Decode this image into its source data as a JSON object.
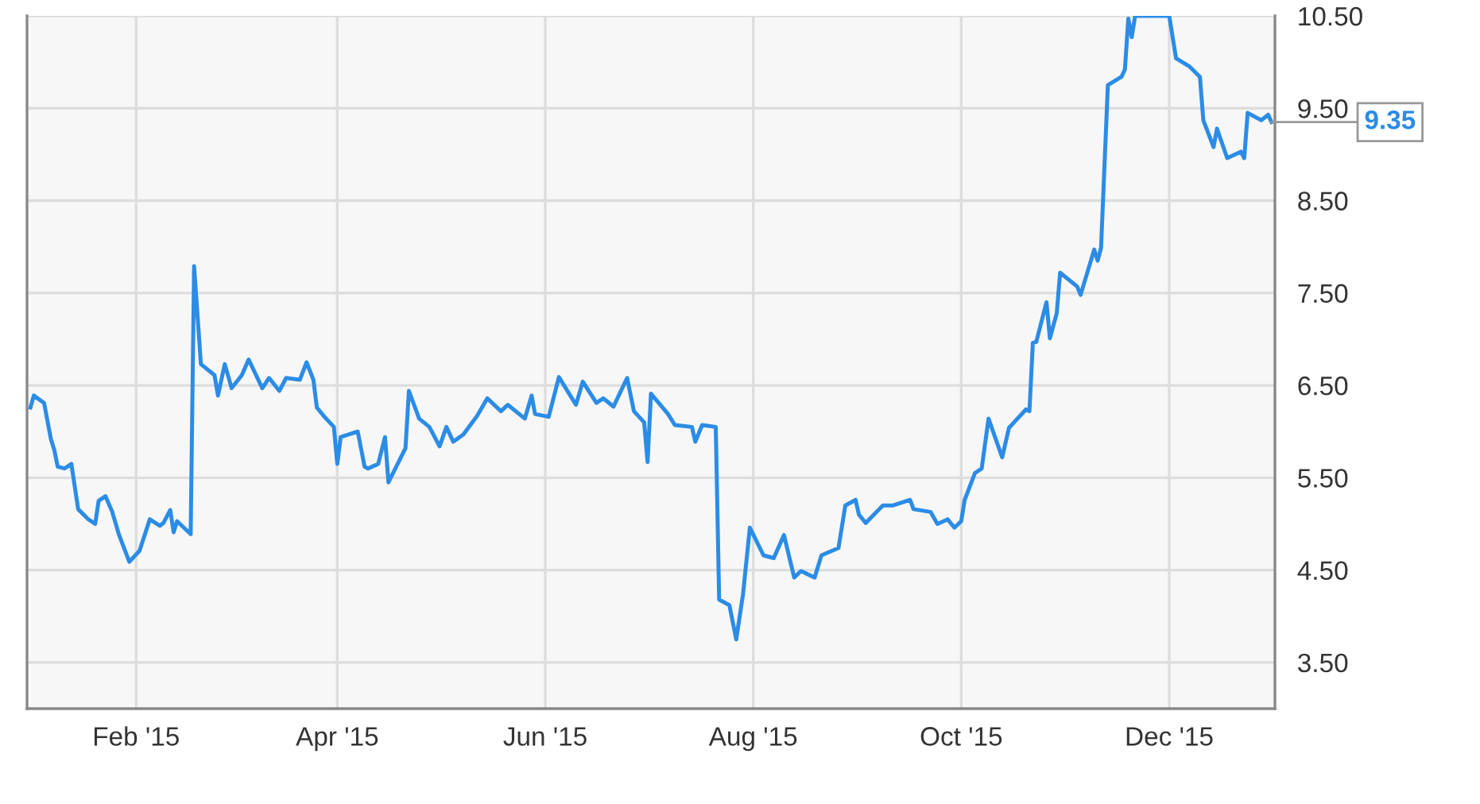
{
  "chart_data": {
    "type": "line",
    "x": [
      "2015-01-01",
      "2015-01-02",
      "2015-01-05",
      "2015-01-07",
      "2015-01-08",
      "2015-01-09",
      "2015-01-11",
      "2015-01-13",
      "2015-01-15",
      "2015-01-18",
      "2015-01-20",
      "2015-01-21",
      "2015-01-23",
      "2015-01-25",
      "2015-01-27",
      "2015-01-30",
      "2015-02-02",
      "2015-02-05",
      "2015-02-08",
      "2015-02-09",
      "2015-02-11",
      "2015-02-12",
      "2015-02-13",
      "2015-02-17",
      "2015-02-18",
      "2015-02-20",
      "2015-02-24",
      "2015-02-25",
      "2015-02-27",
      "2015-03-01",
      "2015-03-04",
      "2015-03-06",
      "2015-03-10",
      "2015-03-12",
      "2015-03-15",
      "2015-03-17",
      "2015-03-21",
      "2015-03-23",
      "2015-03-25",
      "2015-03-26",
      "2015-03-28",
      "2015-03-31",
      "2015-04-01",
      "2015-04-02",
      "2015-04-07",
      "2015-04-09",
      "2015-04-10",
      "2015-04-13",
      "2015-04-15",
      "2015-04-16",
      "2015-04-21",
      "2015-04-22",
      "2015-04-25",
      "2015-04-28",
      "2015-05-01",
      "2015-05-03",
      "2015-05-05",
      "2015-05-08",
      "2015-05-12",
      "2015-05-15",
      "2015-05-19",
      "2015-05-21",
      "2015-05-26",
      "2015-05-28",
      "2015-05-29",
      "2015-06-02",
      "2015-06-05",
      "2015-06-10",
      "2015-06-12",
      "2015-06-16",
      "2015-06-18",
      "2015-06-21",
      "2015-06-25",
      "2015-06-27",
      "2015-06-30",
      "2015-07-01",
      "2015-07-02",
      "2015-07-07",
      "2015-07-09",
      "2015-07-14",
      "2015-07-15",
      "2015-07-17",
      "2015-07-21",
      "2015-07-22",
      "2015-07-25",
      "2015-07-27",
      "2015-07-29",
      "2015-07-31",
      "2015-08-04",
      "2015-08-07",
      "2015-08-10",
      "2015-08-13",
      "2015-08-15",
      "2015-08-19",
      "2015-08-21",
      "2015-08-26",
      "2015-08-28",
      "2015-08-31",
      "2015-09-01",
      "2015-09-03",
      "2015-09-08",
      "2015-09-11",
      "2015-09-16",
      "2015-09-17",
      "2015-09-22",
      "2015-09-24",
      "2015-09-27",
      "2015-09-29",
      "2015-10-01",
      "2015-10-02",
      "2015-10-05",
      "2015-10-07",
      "2015-10-09",
      "2015-10-13",
      "2015-10-15",
      "2015-10-20",
      "2015-10-21",
      "2015-10-22",
      "2015-10-23",
      "2015-10-26",
      "2015-10-27",
      "2015-10-29",
      "2015-10-30",
      "2015-11-04",
      "2015-11-05",
      "2015-11-09",
      "2015-11-10",
      "2015-11-11",
      "2015-11-13",
      "2015-11-17",
      "2015-11-18",
      "2015-11-19",
      "2015-11-20",
      "2015-11-21",
      "2015-12-01",
      "2015-12-03",
      "2015-12-07",
      "2015-12-10",
      "2015-12-11",
      "2015-12-14",
      "2015-12-15",
      "2015-12-18",
      "2015-12-22",
      "2015-12-23",
      "2015-12-24",
      "2015-12-28",
      "2015-12-30",
      "2015-12-31"
    ],
    "series": [
      {
        "color": "#2b8ce6",
        "values": [
          6.26,
          6.39,
          6.31,
          5.92,
          5.8,
          5.62,
          5.6,
          5.65,
          5.16,
          5.05,
          5.0,
          5.25,
          5.3,
          5.13,
          4.88,
          4.59,
          4.71,
          5.05,
          4.98,
          5.01,
          5.15,
          4.91,
          5.03,
          4.89,
          7.79,
          6.73,
          6.61,
          6.39,
          6.73,
          6.47,
          6.61,
          6.78,
          6.47,
          6.58,
          6.44,
          6.58,
          6.56,
          6.75,
          6.56,
          6.26,
          6.17,
          6.05,
          5.65,
          5.94,
          6.0,
          5.62,
          5.6,
          5.65,
          5.94,
          5.45,
          5.82,
          6.44,
          6.14,
          6.05,
          5.84,
          6.05,
          5.89,
          5.97,
          6.17,
          6.36,
          6.22,
          6.29,
          6.14,
          6.39,
          6.19,
          6.16,
          6.59,
          6.29,
          6.54,
          6.31,
          6.36,
          6.27,
          6.58,
          6.22,
          6.1,
          5.67,
          6.41,
          6.19,
          6.07,
          6.05,
          5.89,
          6.07,
          6.05,
          4.18,
          4.12,
          3.75,
          4.24,
          4.96,
          4.66,
          4.63,
          4.88,
          4.42,
          4.49,
          4.42,
          4.66,
          4.74,
          5.2,
          5.26,
          5.1,
          5.01,
          5.2,
          5.2,
          5.26,
          5.16,
          5.13,
          5.0,
          5.05,
          4.96,
          5.03,
          5.26,
          5.55,
          5.6,
          6.14,
          5.72,
          6.04,
          6.24,
          6.22,
          6.96,
          6.97,
          7.4,
          7.01,
          7.28,
          7.72,
          7.57,
          7.48,
          7.97,
          7.85,
          7.99,
          9.75,
          9.84,
          9.92,
          10.47,
          10.27,
          10.5,
          10.5,
          10.04,
          9.95,
          9.84,
          9.37,
          9.08,
          9.28,
          8.96,
          9.03,
          8.96,
          9.45,
          9.37,
          9.43,
          9.35
        ]
      }
    ],
    "xlim": [
      "2014-12-31",
      "2016-01-01"
    ],
    "xticks": [
      {
        "value": "2015-02-01",
        "label": "Feb '15"
      },
      {
        "value": "2015-04-01",
        "label": "Apr '15"
      },
      {
        "value": "2015-06-01",
        "label": "Jun '15"
      },
      {
        "value": "2015-08-01",
        "label": "Aug '15"
      },
      {
        "value": "2015-10-01",
        "label": "Oct '15"
      },
      {
        "value": "2015-12-01",
        "label": "Dec '15"
      }
    ],
    "ylim": [
      3.0,
      10.5
    ],
    "yticks": [
      {
        "value": 3.5,
        "label": "3.50"
      },
      {
        "value": 4.5,
        "label": "4.50"
      },
      {
        "value": 5.5,
        "label": "5.50"
      },
      {
        "value": 6.5,
        "label": "6.50"
      },
      {
        "value": 7.5,
        "label": "7.50"
      },
      {
        "value": 8.5,
        "label": "8.50"
      },
      {
        "value": 9.5,
        "label": "9.50"
      },
      {
        "value": 10.5,
        "label": "10.50"
      }
    ],
    "annotations": [
      {
        "text": "9.35",
        "x": "2015-12-31",
        "y": 9.35
      }
    ],
    "grid": true,
    "marker": "none",
    "line_style": "solid"
  }
}
